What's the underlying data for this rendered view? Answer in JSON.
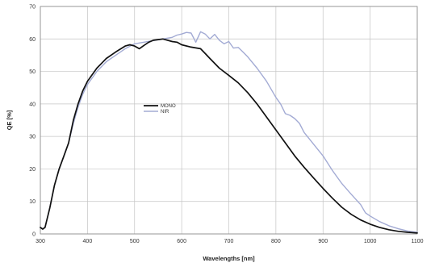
{
  "chart_data": {
    "type": "line",
    "xlabel": "Wavelengths [nm]",
    "ylabel": "QE [%]",
    "xlim": [
      300,
      1100
    ],
    "ylim": [
      0,
      70
    ],
    "xticks": [
      300,
      400,
      500,
      600,
      700,
      800,
      900,
      1000,
      1100
    ],
    "yticks": [
      0,
      10,
      20,
      30,
      40,
      50,
      60,
      70
    ],
    "grid": true,
    "legend_position": "center-left",
    "series": [
      {
        "name": "MONO",
        "color": "#111111",
        "points": [
          [
            300,
            2
          ],
          [
            305,
            1.5
          ],
          [
            310,
            2
          ],
          [
            320,
            8
          ],
          [
            330,
            15
          ],
          [
            340,
            20
          ],
          [
            350,
            24
          ],
          [
            360,
            28
          ],
          [
            370,
            35
          ],
          [
            380,
            40
          ],
          [
            390,
            44
          ],
          [
            400,
            47
          ],
          [
            420,
            51
          ],
          [
            440,
            54
          ],
          [
            460,
            56
          ],
          [
            480,
            57.8
          ],
          [
            490,
            58.2
          ],
          [
            500,
            57.8
          ],
          [
            510,
            57
          ],
          [
            520,
            58
          ],
          [
            530,
            59
          ],
          [
            540,
            59.6
          ],
          [
            550,
            59.8
          ],
          [
            560,
            60
          ],
          [
            570,
            59.6
          ],
          [
            580,
            59.2
          ],
          [
            590,
            59
          ],
          [
            600,
            58.2
          ],
          [
            620,
            57.5
          ],
          [
            640,
            57
          ],
          [
            650,
            55.5
          ],
          [
            660,
            54
          ],
          [
            680,
            51
          ],
          [
            700,
            48.8
          ],
          [
            720,
            46.5
          ],
          [
            740,
            43.5
          ],
          [
            760,
            40
          ],
          [
            780,
            36
          ],
          [
            800,
            32
          ],
          [
            820,
            28
          ],
          [
            840,
            24
          ],
          [
            860,
            20.5
          ],
          [
            880,
            17.2
          ],
          [
            900,
            14
          ],
          [
            920,
            11
          ],
          [
            940,
            8.2
          ],
          [
            960,
            6
          ],
          [
            980,
            4.3
          ],
          [
            1000,
            3
          ],
          [
            1020,
            2
          ],
          [
            1040,
            1.3
          ],
          [
            1060,
            0.8
          ],
          [
            1080,
            0.5
          ],
          [
            1100,
            0.3
          ]
        ]
      },
      {
        "name": "NIR",
        "color": "#a3abd4",
        "points": [
          [
            300,
            2
          ],
          [
            305,
            1.5
          ],
          [
            310,
            2
          ],
          [
            320,
            8
          ],
          [
            330,
            15
          ],
          [
            340,
            20
          ],
          [
            350,
            24
          ],
          [
            360,
            28
          ],
          [
            370,
            34
          ],
          [
            380,
            39
          ],
          [
            390,
            43
          ],
          [
            400,
            46
          ],
          [
            420,
            50
          ],
          [
            440,
            53
          ],
          [
            460,
            55
          ],
          [
            480,
            57
          ],
          [
            500,
            58.5
          ],
          [
            520,
            59
          ],
          [
            540,
            59.5
          ],
          [
            560,
            60
          ],
          [
            580,
            60.5
          ],
          [
            590,
            61.2
          ],
          [
            600,
            61.5
          ],
          [
            610,
            62
          ],
          [
            620,
            61.8
          ],
          [
            630,
            59
          ],
          [
            640,
            62.2
          ],
          [
            650,
            61.5
          ],
          [
            660,
            60
          ],
          [
            670,
            61.4
          ],
          [
            680,
            59.6
          ],
          [
            690,
            58.5
          ],
          [
            700,
            59.2
          ],
          [
            710,
            57.2
          ],
          [
            720,
            57.4
          ],
          [
            730,
            56
          ],
          [
            740,
            54.5
          ],
          [
            760,
            51
          ],
          [
            780,
            47
          ],
          [
            800,
            42
          ],
          [
            810,
            40
          ],
          [
            820,
            37
          ],
          [
            830,
            36.5
          ],
          [
            840,
            35.5
          ],
          [
            850,
            34
          ],
          [
            860,
            31.2
          ],
          [
            880,
            27.6
          ],
          [
            900,
            24
          ],
          [
            920,
            19.5
          ],
          [
            940,
            15.5
          ],
          [
            960,
            12.2
          ],
          [
            980,
            9
          ],
          [
            990,
            6.5
          ],
          [
            1000,
            5.5
          ],
          [
            1020,
            3.8
          ],
          [
            1040,
            2.5
          ],
          [
            1060,
            1.6
          ],
          [
            1080,
            0.9
          ],
          [
            1100,
            0.5
          ]
        ]
      }
    ]
  }
}
